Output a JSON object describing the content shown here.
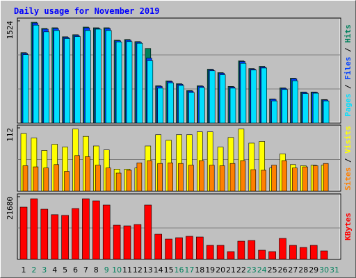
{
  "chart_data": [
    {
      "type": "bar",
      "title": "Daily usage for November 2019",
      "ylim": [
        0,
        1524
      ],
      "yticks": [
        1524
      ],
      "series": [
        {
          "name": "Hits",
          "color": "#00805c",
          "values": [
            1050,
            1503,
            1411,
            1421,
            1287,
            1318,
            1431,
            1421,
            1421,
            1236,
            1246,
            1215,
            1112,
            556,
            628,
            587,
            484,
            556,
            803,
            752,
            546,
            927,
            813,
            845,
            360,
            525,
            669,
            463,
            463,
            350,
            null
          ]
        },
        {
          "name": "Files",
          "color": "#0040ff",
          "values": [
            1040,
            1492,
            1400,
            1410,
            1278,
            1308,
            1420,
            1410,
            1410,
            1226,
            1236,
            1205,
            968,
            548,
            620,
            578,
            476,
            548,
            794,
            744,
            538,
            918,
            804,
            836,
            354,
            517,
            660,
            456,
            456,
            344,
            null
          ]
        },
        {
          "name": "Pages",
          "color": "#00e0ff",
          "values": [
            1020,
            1460,
            1360,
            1380,
            1260,
            1290,
            1380,
            1400,
            1380,
            1210,
            1215,
            1190,
            930,
            520,
            600,
            560,
            455,
            530,
            780,
            720,
            520,
            890,
            790,
            820,
            330,
            500,
            630,
            440,
            445,
            330,
            null
          ]
        }
      ]
    },
    {
      "type": "bar",
      "ylim": [
        0,
        112
      ],
      "yticks": [
        112
      ],
      "series": [
        {
          "name": "Visits",
          "color": "#ffff00",
          "values": [
            102,
            94,
            72,
            83,
            78,
            110,
            97,
            80,
            73,
            39,
            39,
            41,
            80,
            100,
            90,
            100,
            100,
            105,
            105,
            78,
            95,
            110,
            85,
            88,
            41,
            66,
            47,
            45,
            46,
            46,
            null
          ]
        },
        {
          "name": "Sites",
          "color": "#ff8000",
          "values": [
            45,
            43,
            41,
            47,
            35,
            63,
            61,
            46,
            41,
            32,
            37,
            50,
            54,
            49,
            50,
            49,
            46,
            54,
            46,
            45,
            49,
            54,
            38,
            37,
            46,
            54,
            41,
            43,
            45,
            49,
            null
          ]
        }
      ]
    },
    {
      "type": "bar",
      "ylim": [
        0,
        21680
      ],
      "yticks": [
        21680
      ],
      "categories": [
        "1",
        "2",
        "3",
        "4",
        "5",
        "6",
        "7",
        "8",
        "9",
        "10",
        "11",
        "12",
        "13",
        "14",
        "15",
        "16",
        "17",
        "18",
        "19",
        "20",
        "21",
        "22",
        "23",
        "24",
        "25",
        "26",
        "27",
        "28",
        "29",
        "30",
        "31"
      ],
      "category_colors": [
        "#000000",
        "#00805c",
        "#00805c",
        "#000000",
        "#000000",
        "#000000",
        "#000000",
        "#000000",
        "#00805c",
        "#00805c",
        "#000000",
        "#000000",
        "#000000",
        "#000000",
        "#000000",
        "#00805c",
        "#00805c",
        "#000000",
        "#000000",
        "#000000",
        "#000000",
        "#000000",
        "#00805c",
        "#00805c",
        "#000000",
        "#000000",
        "#000000",
        "#000000",
        "#000000",
        "#00805c",
        "#00805c"
      ],
      "series": [
        {
          "name": "KBytes",
          "color": "#ff0000",
          "values": [
            18067,
            20957,
            17344,
            15454,
            15213,
            17585,
            20957,
            20235,
            18790,
            11804,
            11563,
            12045,
            18790,
            8672,
            6986,
            7468,
            7950,
            7709,
            4818,
            4818,
            2650,
            6263,
            6504,
            3132,
            2650,
            7227,
            4818,
            4095,
            4818,
            2891,
            null
          ]
        }
      ]
    }
  ]
}
